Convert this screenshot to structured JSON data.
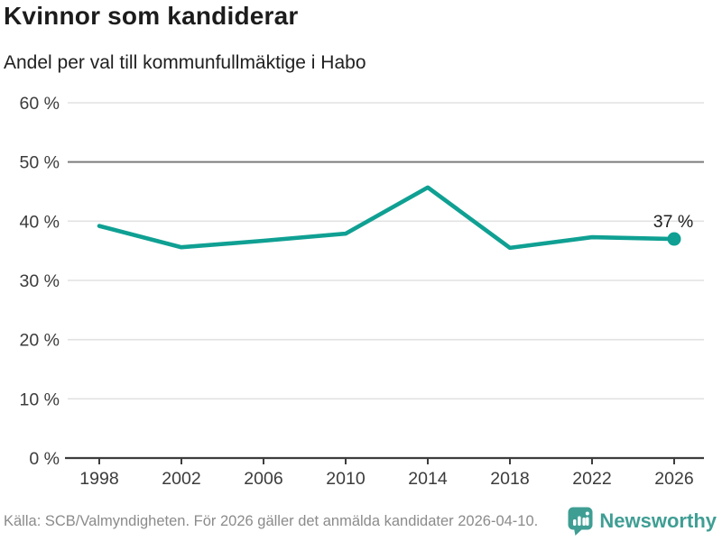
{
  "header": {
    "title": "Kvinnor som kandiderar",
    "subtitle": "Andel per val till kommunfullmäktige i Habo"
  },
  "chart_data": {
    "type": "line",
    "title": "Kvinnor som kandiderar",
    "subtitle": "Andel per val till kommunfullmäktige i Habo",
    "x": [
      1998,
      2002,
      2006,
      2010,
      2014,
      2018,
      2022,
      2026
    ],
    "x_tick_labels": [
      "1998",
      "2002",
      "2006",
      "2010",
      "2014",
      "2018",
      "2022",
      "2026"
    ],
    "values": [
      39.2,
      35.6,
      36.7,
      37.9,
      45.7,
      35.5,
      37.3,
      37.0
    ],
    "y_ticks": [
      0,
      10,
      20,
      30,
      40,
      50,
      60
    ],
    "y_tick_suffix": " %",
    "ylim": [
      0,
      60
    ],
    "grid": true,
    "reference_line": 50,
    "end_label": "37 %",
    "legend": "none",
    "colors": {
      "line": "#0fa093",
      "grid": "#e2e2e2",
      "reference_line": "#7c7c7c",
      "axis": "#3d3d3d",
      "tick_label": "#3c3c3c",
      "end_label_text": "#1f1f1f"
    }
  },
  "footer": {
    "source": "Källa: SCB/Valmyndigheten. För 2026 gäller det anmälda kandidater 2026-04-10.",
    "brand": "Newsworthy",
    "brand_color": "#3f9e94"
  }
}
